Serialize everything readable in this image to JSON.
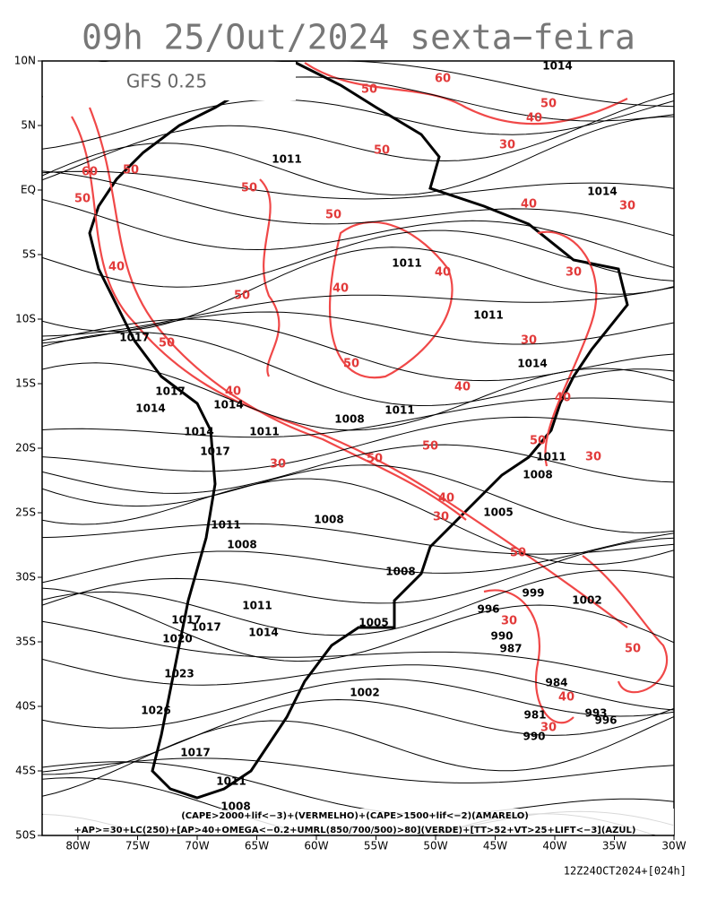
{
  "header": {
    "title": "09h 25/Out/2024 sexta−feira",
    "model": "GFS 0.25"
  },
  "map": {
    "lat_labels": [
      "10N",
      "5N",
      "EQ",
      "5S",
      "10S",
      "15S",
      "20S",
      "25S",
      "30S",
      "35S",
      "40S",
      "45S",
      "50S"
    ],
    "lon_labels": [
      "80W",
      "75W",
      "70W",
      "65W",
      "60W",
      "55W",
      "50W",
      "45W",
      "40W",
      "35W",
      "30W"
    ],
    "isobar_labels": [
      1014,
      1011,
      1014,
      1011,
      1011,
      1014,
      1017,
      1017,
      1014,
      1014,
      1008,
      1011,
      1014,
      1011,
      1017,
      1011,
      1008,
      1005,
      1008,
      1011,
      1008,
      1008,
      999,
      1002,
      996,
      1011,
      1017,
      1017,
      1020,
      1014,
      1005,
      990,
      987,
      1023,
      984,
      1002,
      1026,
      981,
      993,
      996,
      990,
      1017,
      1011,
      1008
    ],
    "cape_labels": [
      50,
      60,
      50,
      40,
      50,
      30,
      50,
      50,
      60,
      50,
      50,
      40,
      30,
      40,
      40,
      30,
      40,
      50,
      30,
      50,
      50,
      40,
      40,
      40,
      50,
      50,
      50,
      30,
      30,
      40,
      30,
      50,
      30,
      50,
      40,
      30
    ],
    "legend": [
      "(CAPE>2000+lif<−3)+(VERMELHO)+(CAPE>1500+lif<−2)(AMARELO)",
      "+AP>=30+LC(250)+[AP>40+OMEGA<−0.2+UMRL(850/700/500)>80](VERDE)+[TT>52+VT>25+LIFT<−3](AZUL)"
    ]
  },
  "footer": "12Z24OCT2024+[024h]"
}
